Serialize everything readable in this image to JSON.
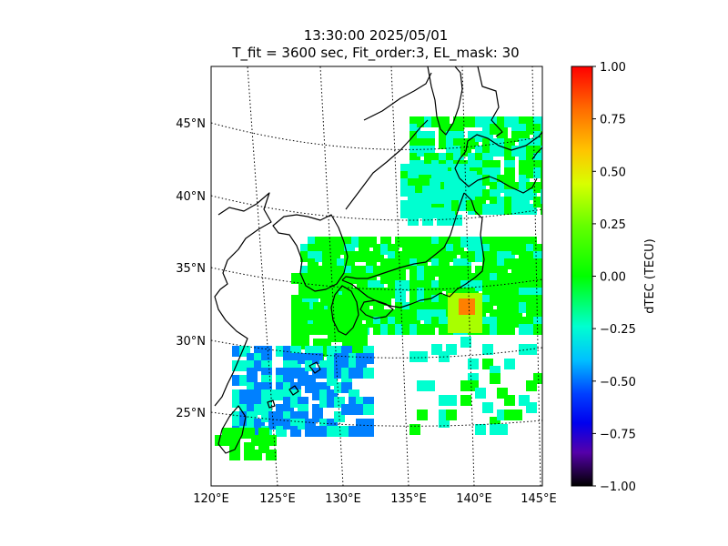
{
  "title": {
    "line1": "13:30:00 2025/05/01",
    "line2": "T_fit = 3600 sec, Fit_order:3, EL_mask: 30"
  },
  "map": {
    "region": "Japan and surrounding seas",
    "lon_range": [
      120,
      145
    ],
    "lat_range": [
      20,
      49
    ],
    "lat_labels": [
      "45°N",
      "40°N",
      "35°N",
      "30°N",
      "25°N"
    ],
    "lon_labels": [
      "120°E",
      "125°E",
      "130°E",
      "135°E",
      "140°E",
      "145°E"
    ],
    "graticule_style": "dotted",
    "coastline_color": "#000000"
  },
  "colorbar": {
    "label": "dTEC (TECU)",
    "colormap": "nipy_spectral-like",
    "range": [
      -1.0,
      1.0
    ],
    "ticks": [
      "1.00",
      "0.75",
      "0.50",
      "0.25",
      "0.00",
      "−0.25",
      "−0.50",
      "−0.75",
      "−1.00"
    ],
    "colors": [
      "#ff0000",
      "#ff8000",
      "#ffee00",
      "#a8ff00",
      "#00ff00",
      "#00ffd0",
      "#0080ff",
      "#0000ff",
      "#6600aa",
      "#000000"
    ]
  },
  "chart_data": {
    "type": "heatmap",
    "title": "13:30:00 2025/05/01",
    "subtitle": "T_fit = 3600 sec, Fit_order:3, EL_mask: 30",
    "xlabel": "",
    "ylabel": "",
    "xlim": [
      120,
      145
    ],
    "ylim": [
      20,
      49
    ],
    "value_label": "dTEC (TECU)",
    "value_range": [
      -1.0,
      1.0
    ],
    "observations": [
      {
        "region": "Japan mainland (Honshu, Shikoku, Kyushu)",
        "dTEC_approx": 0.05
      },
      {
        "region": "Off Tokai / Izu, south of central Honshu",
        "dTEC_approx": 0.55
      },
      {
        "region": "Hokkaido",
        "dTEC_approx": -0.1
      },
      {
        "region": "Korea and Sea of Japan",
        "dTEC_approx": 0.0
      },
      {
        "region": "East China Sea / Nansei Islands",
        "dTEC_approx": -0.25
      },
      {
        "region": "South of Okinawa",
        "dTEC_approx": -0.4
      },
      {
        "region": "Taiwan",
        "dTEC_approx": 0.1
      }
    ]
  }
}
